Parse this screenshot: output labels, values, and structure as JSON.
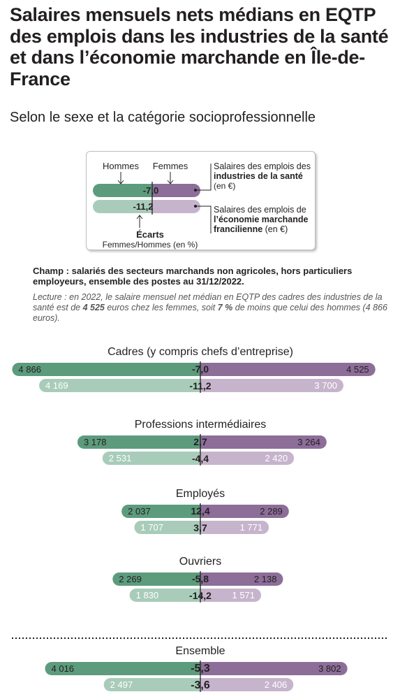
{
  "title": "Salaires mensuels nets médians en EQTP des emplois dans les industries de la santé et dans l’économie marchande en Île-de-France",
  "subtitle": "Selon le sexe et la catégorie socioprofessionnelle",
  "legend": {
    "hommes": "Hommes",
    "femmes": "Femmes",
    "sample_gap_sante": "-7,0",
    "sample_gap_eco": "-11,2",
    "ecarts_label": "Écarts",
    "ecarts_sub": "Femmes/Hommes (en %)",
    "sante_line1": "Salaires des emplois des",
    "sante_line2": "industries de la santé",
    "sante_line3": "(en €)",
    "eco_line1": "Salaires des emplois de",
    "eco_line2": "l’économie marchande",
    "eco_line3_bold": "francilienne",
    "eco_line3_rest": " (en €)"
  },
  "notes": {
    "champ": "Champ : salariés des secteurs marchands non agricoles, hors particuliers employeurs, ensemble des postes au 31/12/2022.",
    "lecture_a": "Lecture : en 2022, le salaire mensuel net médian en EQTP des cadres des industries de la santé est de ",
    "lecture_b": "4 525",
    "lecture_c": " euros chez les femmes, soit ",
    "lecture_d": "7 %",
    "lecture_e": " de moins que celui des hommes (4 866 euros)."
  },
  "colors": {
    "hommes_sante": "#5d9b7d",
    "hommes_eco": "#a8ccb9",
    "femmes_sante": "#8c6e99",
    "femmes_eco": "#c6b4cc"
  },
  "chart_data": {
    "type": "bar",
    "unit": "€",
    "categories": [
      "Cadres (y compris chefs d’entreprise)",
      "Professions intermédiaires",
      "Employés",
      "Ouvriers",
      "Ensemble"
    ],
    "series": [
      {
        "name": "Hommes – industries de la santé",
        "values": [
          4866,
          3178,
          2037,
          2269,
          4016
        ]
      },
      {
        "name": "Femmes – industries de la santé",
        "values": [
          4525,
          3264,
          2289,
          2138,
          3802
        ]
      },
      {
        "name": "Hommes – économie marchande francilienne",
        "values": [
          4169,
          2531,
          1707,
          1830,
          2497
        ]
      },
      {
        "name": "Femmes – économie marchande francilienne",
        "values": [
          3700,
          2420,
          1771,
          1571,
          2406
        ]
      }
    ],
    "value_labels": {
      "hommes_sante": [
        "4 866",
        "3 178",
        "2 037",
        "2 269",
        "4 016"
      ],
      "femmes_sante": [
        "4 525",
        "3 264",
        "2 289",
        "2 138",
        "3 802"
      ],
      "hommes_eco": [
        "4 169",
        "2 531",
        "1 707",
        "1 830",
        "2 497"
      ],
      "femmes_eco": [
        "3 700",
        "2 420",
        "1 771",
        "1 571",
        "2 406"
      ]
    },
    "ecarts_sante": [
      "-7,0",
      "2,7",
      "12,4",
      "-5,8",
      "-5,3"
    ],
    "ecarts_eco": [
      "-11,2",
      "-4,4",
      "3,7",
      "-14,2",
      "-3,6"
    ]
  }
}
